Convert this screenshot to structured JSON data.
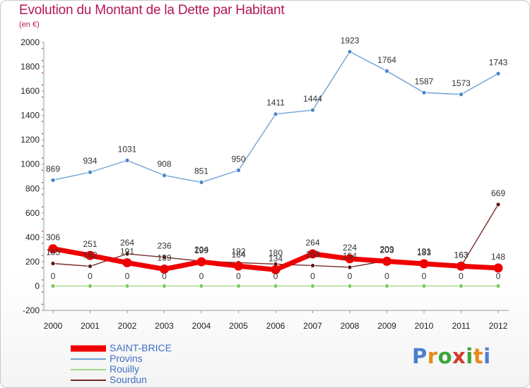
{
  "title": "Evolution du Montant de la Dette par Habitant",
  "subtitle": "(en €)",
  "logo": {
    "text": "Proxiti",
    "letters": [
      "P",
      "r",
      "o",
      "x",
      "i",
      "t",
      "i"
    ],
    "colors": [
      "#4a7fd0",
      "#e58a1e",
      "#3aa536",
      "#d23a2b",
      "#3aa536",
      "#e58a1e",
      "#4a7fd0"
    ]
  },
  "chart_data": {
    "type": "line",
    "title": "Evolution du Montant de la Dette par Habitant",
    "ylabel": "(en €)",
    "xlabel": "",
    "x": [
      "2000",
      "2001",
      "2002",
      "2003",
      "2004",
      "2005",
      "2006",
      "2007",
      "2008",
      "2009",
      "2010",
      "2011",
      "2012"
    ],
    "ylim": [
      -200,
      2000
    ],
    "yticks": [
      -200,
      0,
      200,
      400,
      600,
      800,
      1000,
      1200,
      1400,
      1600,
      1800,
      2000
    ],
    "grid": false,
    "legend_position": "bottom-left",
    "series": [
      {
        "name": "SAINT-BRICE",
        "color": "#ee0000",
        "marker": "#ee0000",
        "width": "thick",
        "values": [
          306,
          251,
          191,
          139,
          199,
          164,
          134,
          264,
          224,
          203,
          183,
          163,
          148
        ],
        "labels": [
          "306",
          "251",
          "191",
          "139",
          "199",
          "164",
          "134",
          "264",
          "224",
          "203",
          "183",
          "163",
          "148"
        ]
      },
      {
        "name": "Provins",
        "color": "#6ea2d8",
        "marker": "#4a86c8",
        "width": "thin",
        "values": [
          869,
          934,
          1031,
          908,
          851,
          950,
          1411,
          1444,
          1923,
          1764,
          1587,
          1573,
          1743
        ],
        "labels": [
          "869",
          "934",
          "1031",
          "908",
          "851",
          "950",
          "1411",
          "1444",
          "1923",
          "1764",
          "1587",
          "1573",
          "1743"
        ]
      },
      {
        "name": "Rouilly",
        "color": "#9ed88a",
        "marker": "#7ac95e",
        "width": "thin",
        "values": [
          0,
          0,
          0,
          0,
          0,
          0,
          0,
          0,
          0,
          0,
          0,
          0,
          0
        ],
        "labels": [
          "0",
          "0",
          "0",
          "0",
          "0",
          "0",
          "0",
          "0",
          "0",
          "0",
          "0",
          "0",
          "0"
        ]
      },
      {
        "name": "Sourdun",
        "color": "#7a2a2a",
        "marker": "#5a1515",
        "width": "thin",
        "values": [
          185,
          162,
          264,
          236,
          204,
          192,
          180,
          168,
          154,
          209,
          191,
          163,
          669
        ],
        "labels": [
          "185",
          "162",
          "264",
          "236",
          "204",
          "192",
          "180",
          "168",
          "154",
          "209",
          "191",
          "163",
          "669"
        ]
      }
    ]
  }
}
